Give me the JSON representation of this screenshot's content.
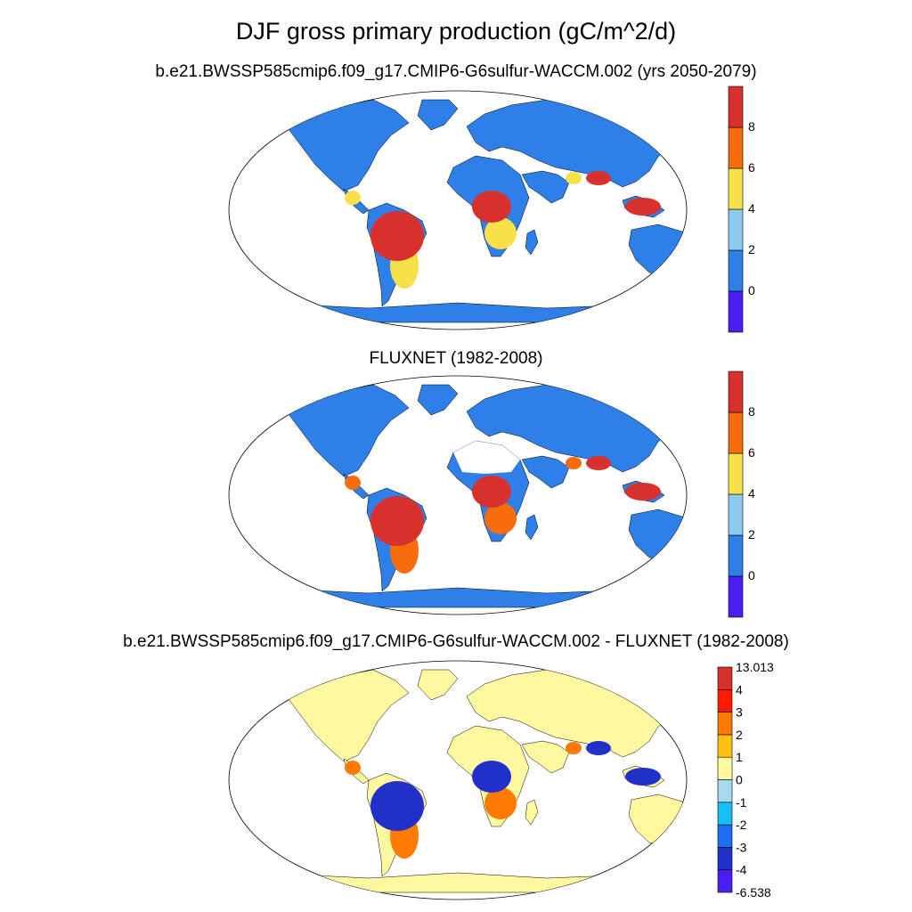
{
  "title": "DJF gross primary production (gC/m^2/d)",
  "colors": {
    "ocean": "#ffffff",
    "outline": "#000000",
    "land_low": "#2e7fe8",
    "gpp_levels": [
      "#4a1df2",
      "#2e7fe8",
      "#8ecbf0",
      "#f8e04a",
      "#f76c0c",
      "#d8302c"
    ],
    "diff_levels": [
      "#4a1df2",
      "#2030c8",
      "#1e6ff0",
      "#18bff5",
      "#a6d8f0",
      "#fff8a0",
      "#ffc010",
      "#ff7a00",
      "#ff1a00",
      "#d8302c"
    ]
  },
  "chart_data": [
    {
      "type": "heatmap",
      "title": "b.e21.BWSSP585cmip6.f09_g17.CMIP6-G6sulfur-WACCM.002 (yrs 2050-2079)",
      "colorbar_ticks": [
        "0",
        "2",
        "4",
        "6",
        "8"
      ],
      "colorbar_levels": 6
    },
    {
      "type": "heatmap",
      "title": "FLUXNET (1982-2008)",
      "colorbar_ticks": [
        "0",
        "2",
        "4",
        "6",
        "8"
      ],
      "colorbar_levels": 6
    },
    {
      "type": "heatmap",
      "title": "b.e21.BWSSP585cmip6.f09_g17.CMIP6-G6sulfur-WACCM.002 - FLUXNET (1982-2008)",
      "colorbar_ticks": [
        "13.013",
        "4",
        "3",
        "2",
        "1",
        "0",
        "-1",
        "-2",
        "-3",
        "-4",
        "-6.538"
      ],
      "colorbar_levels": 10
    }
  ]
}
